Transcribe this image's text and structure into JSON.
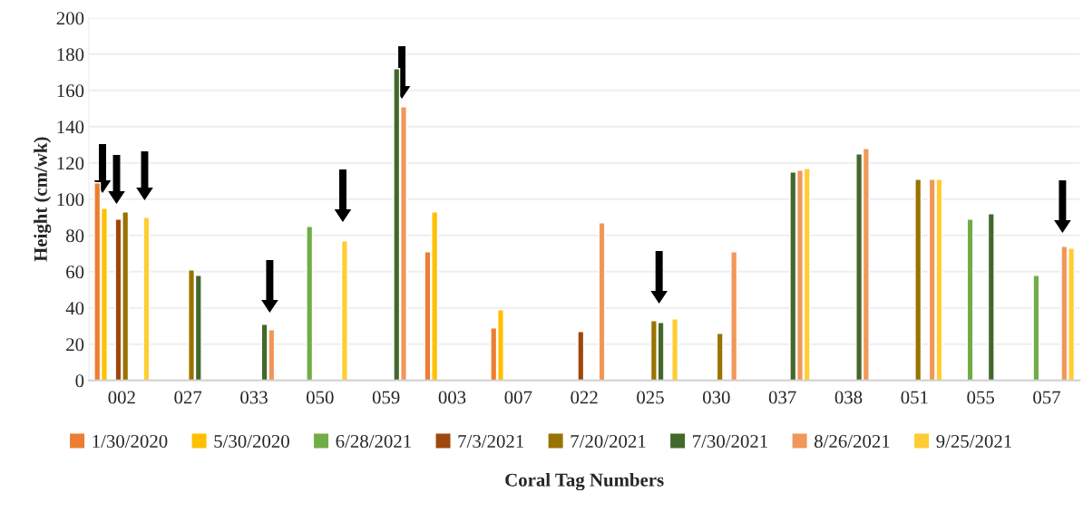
{
  "chart_data": {
    "type": "bar",
    "xlabel": "Coral Tag Numbers",
    "ylabel": "Height (cm/wk)",
    "categories": [
      "002",
      "027",
      "033",
      "050",
      "059",
      "003",
      "007",
      "022",
      "025",
      "030",
      "037",
      "038",
      "051",
      "055",
      "057"
    ],
    "series": [
      {
        "name": "1/30/2020",
        "color": "#ed7d31",
        "values": [
          109,
          null,
          null,
          null,
          null,
          71,
          29,
          null,
          null,
          null,
          null,
          null,
          null,
          null,
          null
        ]
      },
      {
        "name": "5/30/2020",
        "color": "#ffc000",
        "values": [
          95,
          null,
          null,
          null,
          null,
          93,
          39,
          null,
          null,
          null,
          null,
          null,
          null,
          null,
          null
        ]
      },
      {
        "name": "6/28/2021",
        "color": "#70ad47",
        "values": [
          null,
          null,
          null,
          85,
          null,
          null,
          null,
          null,
          null,
          null,
          null,
          null,
          null,
          89,
          58
        ]
      },
      {
        "name": "7/3/2021",
        "color": "#9e480e",
        "values": [
          89,
          null,
          null,
          null,
          null,
          null,
          null,
          27,
          null,
          null,
          null,
          null,
          null,
          null,
          null
        ]
      },
      {
        "name": "7/20/2021",
        "color": "#997300",
        "values": [
          93,
          61,
          null,
          null,
          null,
          null,
          null,
          null,
          33,
          26,
          null,
          null,
          111,
          null,
          null
        ]
      },
      {
        "name": "7/30/2021",
        "color": "#43682b",
        "values": [
          null,
          58,
          31,
          null,
          172,
          null,
          null,
          null,
          32,
          null,
          115,
          125,
          null,
          92,
          null
        ]
      },
      {
        "name": "8/26/2021",
        "color": "#f1975a",
        "values": [
          null,
          null,
          28,
          null,
          151,
          null,
          null,
          87,
          null,
          71,
          116,
          128,
          111,
          null,
          74
        ]
      },
      {
        "name": "9/25/2021",
        "color": "#ffcd33",
        "values": [
          90,
          null,
          null,
          77,
          null,
          null,
          null,
          null,
          34,
          null,
          117,
          null,
          111,
          null,
          73
        ]
      }
    ],
    "ylim": [
      0,
      200
    ],
    "yticks": [
      0,
      20,
      40,
      60,
      80,
      100,
      120,
      140,
      160,
      180,
      200
    ],
    "grid": "y",
    "legend": "bottom"
  }
}
